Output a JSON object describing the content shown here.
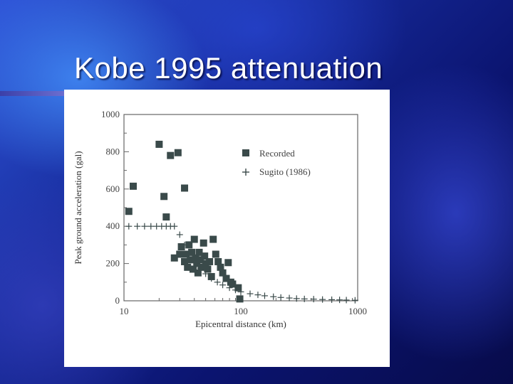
{
  "slide": {
    "title": "Kobe 1995 attenuation"
  },
  "chart_data": {
    "type": "scatter",
    "xlabel": "Epicentral distance (km)",
    "ylabel": "Peak ground acceleration (gal)",
    "xscale": "log",
    "xlim": [
      10,
      1000
    ],
    "ylim": [
      0,
      1000
    ],
    "xticks": [
      {
        "value": 10,
        "label": "10"
      },
      {
        "value": 100,
        "label": "100"
      },
      {
        "value": 1000,
        "label": "1000"
      }
    ],
    "yticks": [
      {
        "value": 0,
        "label": "0"
      },
      {
        "value": 200,
        "label": "200"
      },
      {
        "value": 400,
        "label": "400"
      },
      {
        "value": 600,
        "label": "600"
      },
      {
        "value": 800,
        "label": "800"
      },
      {
        "value": 1000,
        "label": "1000"
      }
    ],
    "legend_position": "top-right",
    "grid": false,
    "series": [
      {
        "name": "Recorded",
        "marker": "square",
        "color": "#3a4a4a",
        "points": [
          [
            11,
            480
          ],
          [
            12,
            615
          ],
          [
            20,
            840
          ],
          [
            22,
            560
          ],
          [
            23,
            450
          ],
          [
            25,
            780
          ],
          [
            29,
            795
          ],
          [
            33,
            605
          ],
          [
            27,
            230
          ],
          [
            30,
            250
          ],
          [
            31,
            290
          ],
          [
            33,
            210
          ],
          [
            34,
            250
          ],
          [
            35,
            180
          ],
          [
            36,
            300
          ],
          [
            37,
            220
          ],
          [
            38,
            260
          ],
          [
            39,
            170
          ],
          [
            40,
            330
          ],
          [
            41,
            230
          ],
          [
            42,
            200
          ],
          [
            43,
            150
          ],
          [
            44,
            260
          ],
          [
            45,
            220
          ],
          [
            46,
            180
          ],
          [
            48,
            310
          ],
          [
            49,
            240
          ],
          [
            50,
            200
          ],
          [
            52,
            170
          ],
          [
            54,
            210
          ],
          [
            56,
            130
          ],
          [
            58,
            330
          ],
          [
            61,
            250
          ],
          [
            64,
            210
          ],
          [
            67,
            180
          ],
          [
            70,
            150
          ],
          [
            75,
            120
          ],
          [
            78,
            205
          ],
          [
            82,
            100
          ],
          [
            85,
            90
          ],
          [
            95,
            70
          ],
          [
            98,
            10
          ]
        ]
      },
      {
        "name": "Sugito (1986)",
        "marker": "plus",
        "color": "#3a4a4a",
        "points": [
          [
            11,
            400
          ],
          [
            13,
            400
          ],
          [
            15,
            400
          ],
          [
            17,
            400
          ],
          [
            19,
            400
          ],
          [
            21,
            400
          ],
          [
            23,
            400
          ],
          [
            25,
            400
          ],
          [
            27,
            400
          ],
          [
            30,
            355
          ],
          [
            33,
            300
          ],
          [
            36,
            250
          ],
          [
            40,
            210
          ],
          [
            45,
            175
          ],
          [
            50,
            145
          ],
          [
            56,
            120
          ],
          [
            63,
            100
          ],
          [
            70,
            85
          ],
          [
            80,
            70
          ],
          [
            90,
            58
          ],
          [
            100,
            48
          ],
          [
            120,
            38
          ],
          [
            140,
            32
          ],
          [
            160,
            27
          ],
          [
            190,
            22
          ],
          [
            220,
            18
          ],
          [
            260,
            15
          ],
          [
            300,
            12
          ],
          [
            350,
            10
          ],
          [
            420,
            9
          ],
          [
            500,
            7
          ],
          [
            600,
            6
          ],
          [
            700,
            5
          ],
          [
            800,
            4
          ],
          [
            950,
            3
          ]
        ]
      }
    ]
  }
}
